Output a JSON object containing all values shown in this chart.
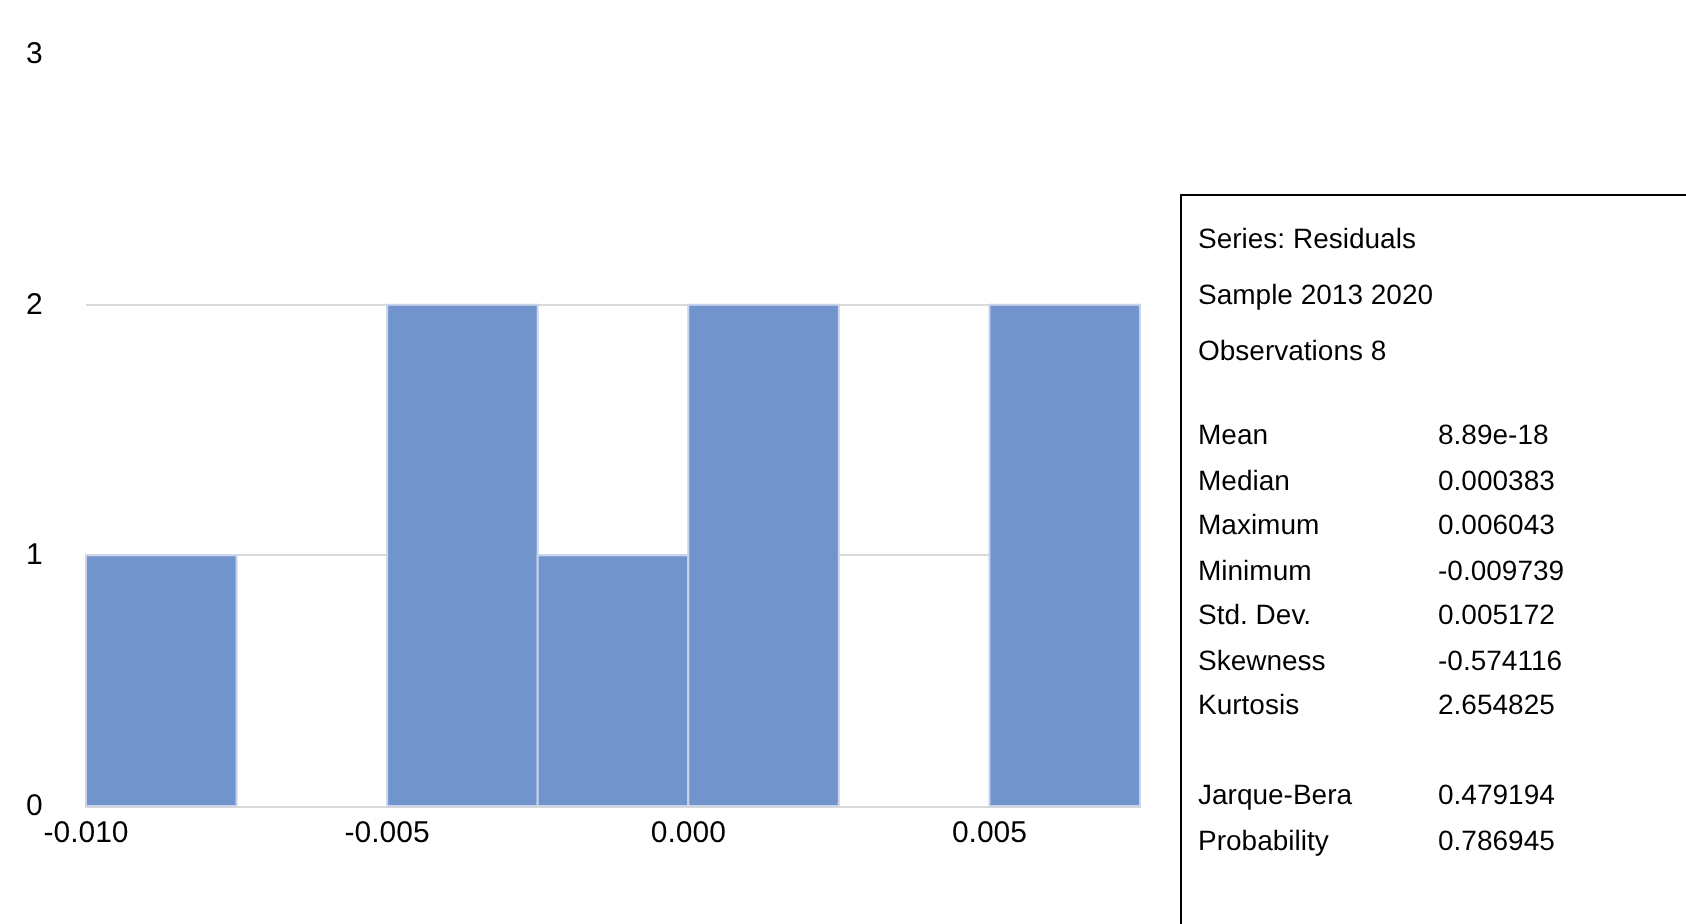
{
  "chart_data": [
    {
      "type": "histogram",
      "bins": [
        -0.01,
        -0.0075,
        -0.005,
        -0.0025,
        0,
        0.0025,
        0.005,
        0.0075
      ],
      "values": [
        1,
        0,
        2,
        1,
        2,
        0,
        2
      ],
      "color": "#7294cd",
      "xlim": [
        -0.01,
        0.0075
      ],
      "xticks": [
        {
          "value": -0.01,
          "label": "-0.010"
        },
        -0.005,
        {
          "value": 0,
          "label": "0.000"
        },
        0.005
      ],
      "ylim": [
        0,
        3
      ],
      "yticks": [
        0,
        1,
        2,
        3
      ],
      "grid": "y"
    },
    {
      "type": "other",
      "title": "Series: Residuals",
      "annotations": [
        "Sample 2013 2020",
        "Observations 8"
      ],
      "categories": [
        "Mean",
        "Median",
        "Maximum",
        "Minimum",
        "Std. Dev.",
        "Skewness",
        "Kurtosis",
        null,
        "Jarque-Bera",
        "Probability"
      ],
      "values": [
        8.89e-18,
        0.000383,
        0.006043,
        -0.009739,
        0.005172,
        -0.574116,
        2.654825,
        null,
        0.479194,
        0.786945
      ],
      "data_labels": true
    }
  ]
}
